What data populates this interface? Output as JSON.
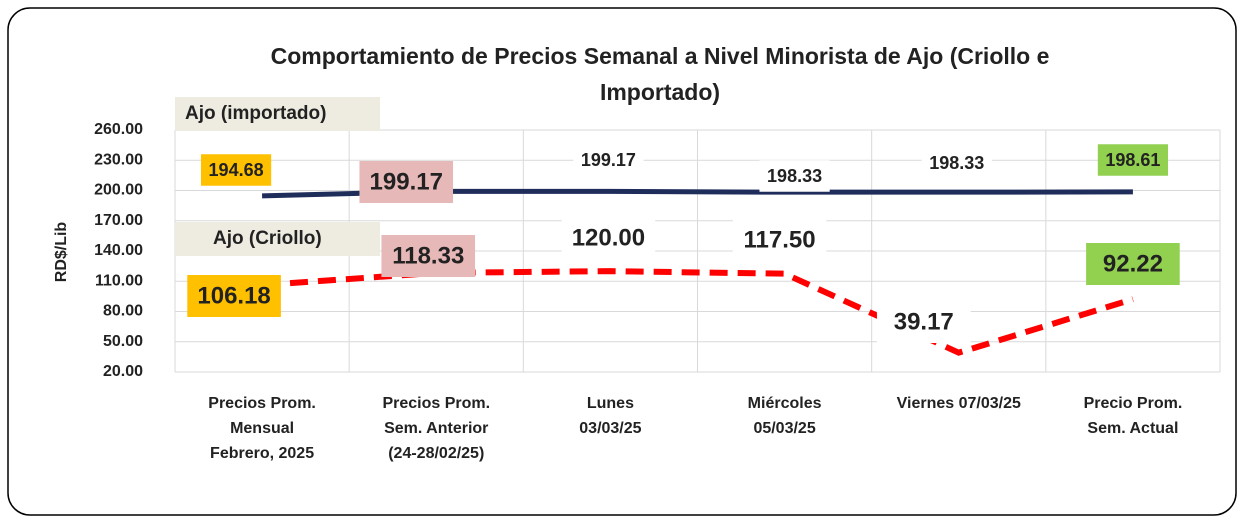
{
  "chart_data": {
    "type": "line",
    "title": "Comportamiento de Precios Semanal a Nivel Minorista de Ajo (Criollo e\nImportado)",
    "ylabel": "RD$/Lib",
    "categories": [
      "Precios Prom.\nMensual\nFebrero, 2025",
      "Precios Prom.\nSem. Anterior\n(24-28/02/25)",
      "Lunes\n03/03/25",
      "Miércoles\n05/03/25",
      "Viernes 07/03/25",
      "Precio Prom.\nSem. Actual"
    ],
    "series": [
      {
        "name": "Ajo (importado)",
        "color": "#1f2d5a",
        "dash": false,
        "values": [
          194.68,
          199.17,
          199.17,
          198.33,
          198.33,
          198.61
        ],
        "value_labels": [
          "194.68",
          "199.17",
          "199.17",
          "198.33",
          "198.33",
          "198.61"
        ]
      },
      {
        "name": "Ajo (Criollo)",
        "color": "#ff0000",
        "dash": true,
        "values": [
          106.18,
          118.33,
          120.0,
          117.5,
          39.17,
          92.22
        ],
        "value_labels": [
          "106.18",
          "118.33",
          "120.00",
          "117.50",
          "39.17",
          "92.22"
        ]
      }
    ],
    "label_fills": [
      "#ffc000",
      "#e6b8b7",
      "#ffffff",
      "#ffffff",
      "#ffffff",
      "#92d050"
    ],
    "ylim": [
      20,
      260
    ],
    "yticks": [
      {
        "value": 20,
        "label": "20.00"
      },
      {
        "value": 50,
        "label": "50.00"
      },
      {
        "value": 80,
        "label": "80.00"
      },
      {
        "value": 110,
        "label": "110.00"
      },
      {
        "value": 140,
        "label": "140.00"
      },
      {
        "value": 170,
        "label": "170.00"
      },
      {
        "value": 200,
        "label": "200.00"
      },
      {
        "value": 230,
        "label": "230.00"
      },
      {
        "value": 260,
        "label": "260.00"
      }
    ],
    "grid": true
  }
}
